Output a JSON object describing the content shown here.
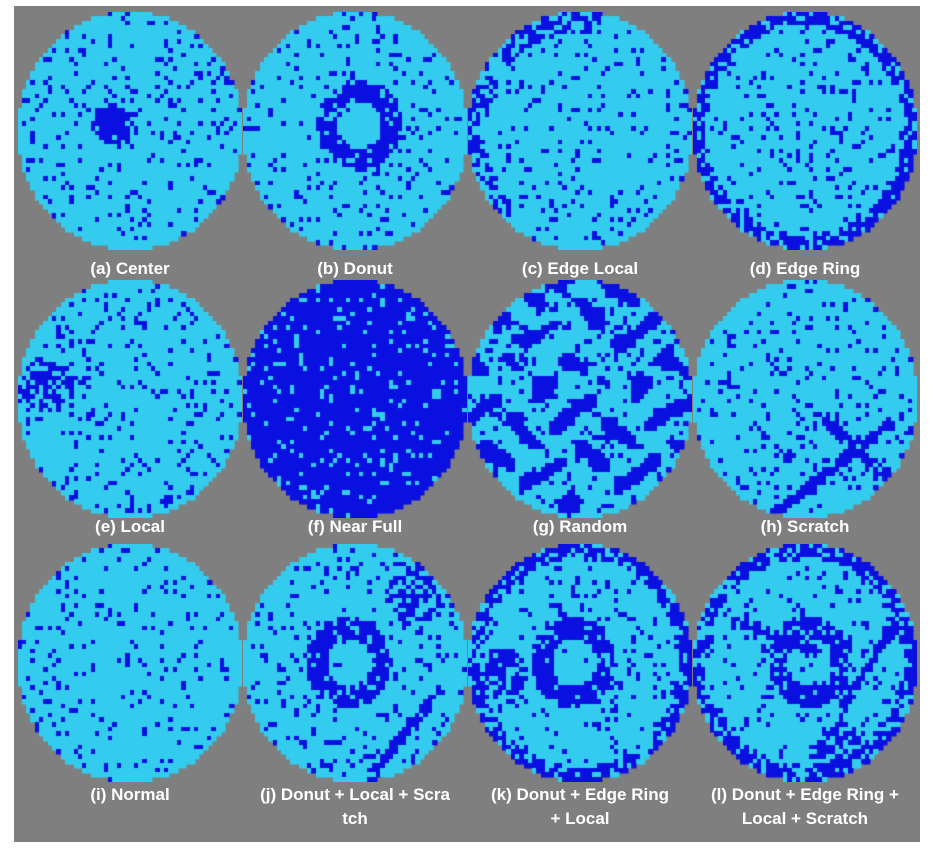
{
  "colors": {
    "background": "#7f7f7f",
    "wafer_pass": "#33ccee",
    "wafer_fail": "#0a10e0",
    "caption_text": "#ffffff"
  },
  "panels": [
    {
      "caption": "(a) Center",
      "pattern": "center"
    },
    {
      "caption": "(b) Donut",
      "pattern": "donut"
    },
    {
      "caption": "(c) Edge Local",
      "pattern": "edge-local"
    },
    {
      "caption": "(d) Edge Ring",
      "pattern": "edge-ring"
    },
    {
      "caption": "(e) Local",
      "pattern": "local"
    },
    {
      "caption": "(f) Near Full",
      "pattern": "near-full"
    },
    {
      "caption": "(g) Random",
      "pattern": "random"
    },
    {
      "caption": "(h) Scratch",
      "pattern": "scratch"
    },
    {
      "caption": "(i) Normal",
      "pattern": "normal"
    },
    {
      "caption": "(j) Donut + Local + Scra\ntch",
      "pattern": "donut+local+scratch"
    },
    {
      "caption": "(k) Donut + Edge Ring\n+ Local",
      "pattern": "donut+edge-ring+local"
    },
    {
      "caption": "(l) Donut + Edge Ring +\nLocal + Scratch",
      "pattern": "donut+edge-ring+local+scratch"
    }
  ]
}
